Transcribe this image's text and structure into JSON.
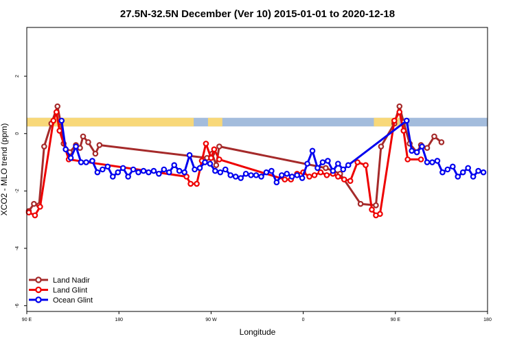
{
  "chart_data": {
    "type": "line",
    "title": "27.5N-32.5N December (Ver 10)   2015-01-01 to 2020-12-18",
    "xlabel": "Longitude",
    "ylabel": "XCO2 - MLO trend (ppm)",
    "xlim": [
      0,
      450
    ],
    "ylim": [
      -6.2,
      3.7
    ],
    "x_ticks": [
      {
        "value": 0,
        "label": "90 E"
      },
      {
        "value": 90,
        "label": "180"
      },
      {
        "value": 180,
        "label": "90 W"
      },
      {
        "value": 270,
        "label": "0"
      },
      {
        "value": 360,
        "label": "90 E"
      },
      {
        "value": 450,
        "label": "180"
      }
    ],
    "y_ticks": [
      {
        "value": 2,
        "label": "2"
      },
      {
        "value": 0,
        "label": "0"
      },
      {
        "value": -2,
        "label": "-2"
      },
      {
        "value": -4,
        "label": "-4"
      },
      {
        "value": -6,
        "label": "-6"
      }
    ],
    "grid": false,
    "legend_position": "bottom-left",
    "land_mask_band": {
      "y_range": [
        0.25,
        0.55
      ],
      "ocean_color": "#a3bcdc",
      "land_color": "#f8d879",
      "land_segments": [
        [
          0,
          161
        ],
        [
          161,
          163
        ],
        [
          177,
          191
        ],
        [
          339,
          364
        ]
      ]
    },
    "series": [
      {
        "name": "Land Nadir",
        "color": "#a52a2a",
        "x": [
          2,
          7,
          12,
          17,
          24,
          30,
          33,
          36,
          42,
          48,
          52,
          55,
          60,
          67,
          71,
          176,
          181,
          185,
          188,
          292,
          306,
          326,
          341,
          346,
          359,
          364,
          368,
          374,
          381,
          385,
          391,
          398,
          405
        ],
        "y": [
          -2.7,
          -2.45,
          -2.5,
          -0.45,
          0.35,
          0.95,
          0.4,
          -0.35,
          -0.65,
          -0.4,
          -0.5,
          -0.1,
          -0.3,
          -0.7,
          -0.4,
          -0.85,
          -0.7,
          -1.1,
          -0.45,
          -1.2,
          -1.4,
          -2.45,
          -2.5,
          -0.45,
          0.35,
          0.95,
          0.4,
          -0.35,
          -0.65,
          -0.4,
          -0.5,
          -0.1,
          -0.3
        ]
      },
      {
        "name": "Land Glint",
        "color": "#ee0000",
        "x": [
          2,
          8,
          13,
          26,
          29,
          32,
          41,
          156,
          160,
          166,
          171,
          175,
          180,
          183,
          188,
          252,
          258,
          264,
          270,
          276,
          281,
          287,
          293,
          299,
          304,
          310,
          316,
          323,
          331,
          337,
          341,
          345,
          359,
          364,
          368,
          372,
          385
        ],
        "y": [
          -2.75,
          -2.85,
          -2.55,
          0.45,
          0.75,
          0.1,
          -0.9,
          -1.5,
          -1.75,
          -1.75,
          -0.95,
          -0.35,
          -0.85,
          -0.55,
          -0.9,
          -1.6,
          -1.6,
          -1.4,
          -1.35,
          -1.5,
          -1.45,
          -1.35,
          -1.45,
          -1.4,
          -1.5,
          -1.6,
          -1.65,
          -1.0,
          -1.1,
          -2.65,
          -2.85,
          -2.8,
          0.45,
          0.75,
          0.1,
          -0.9,
          -0.9
        ]
      },
      {
        "name": "Ocean Glint",
        "color": "#0000ee",
        "x": [
          34,
          38,
          43,
          48,
          53,
          58,
          64,
          69,
          74,
          79,
          84,
          89,
          94,
          99,
          104,
          109,
          114,
          119,
          124,
          129,
          134,
          139,
          144,
          149,
          154,
          159,
          164,
          169,
          174,
          179,
          184,
          189,
          194,
          199,
          204,
          209,
          214,
          219,
          224,
          229,
          234,
          239,
          244,
          249,
          254,
          259,
          264,
          269,
          274,
          279,
          284,
          289,
          294,
          299,
          304,
          309,
          314,
          371,
          376,
          381,
          386,
          391,
          396,
          401,
          406,
          411,
          416,
          421,
          426,
          431,
          436,
          441,
          446
        ],
        "y": [
          0.45,
          -0.55,
          -0.85,
          -0.45,
          -1.0,
          -1.0,
          -0.95,
          -1.35,
          -1.25,
          -1.15,
          -1.5,
          -1.35,
          -1.2,
          -1.5,
          -1.25,
          -1.35,
          -1.3,
          -1.35,
          -1.3,
          -1.4,
          -1.25,
          -1.35,
          -1.1,
          -1.3,
          -1.35,
          -0.75,
          -1.25,
          -1.2,
          -1.0,
          -1.05,
          -1.3,
          -1.35,
          -1.25,
          -1.45,
          -1.5,
          -1.55,
          -1.4,
          -1.45,
          -1.45,
          -1.5,
          -1.35,
          -1.3,
          -1.7,
          -1.45,
          -1.4,
          -1.5,
          -1.45,
          -1.55,
          -1.05,
          -0.6,
          -1.2,
          -1.0,
          -0.95,
          -1.3,
          -1.05,
          -1.25,
          -1.1,
          0.45,
          -0.6,
          -0.65,
          -0.45,
          -1.0,
          -1.0,
          -0.95,
          -1.35,
          -1.25,
          -1.15,
          -1.5,
          -1.35,
          -1.2,
          -1.5,
          -1.3,
          -1.35
        ]
      }
    ]
  }
}
